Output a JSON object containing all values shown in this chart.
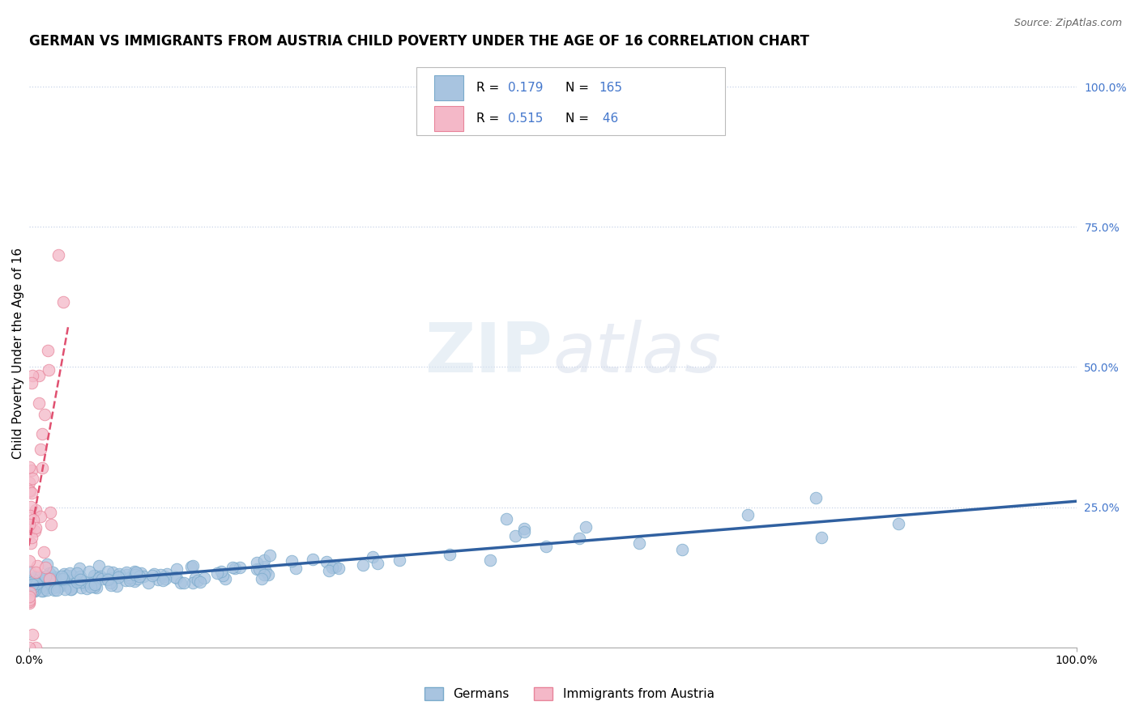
{
  "title": "GERMAN VS IMMIGRANTS FROM AUSTRIA CHILD POVERTY UNDER THE AGE OF 16 CORRELATION CHART",
  "source": "Source: ZipAtlas.com",
  "ylabel": "Child Poverty Under the Age of 16",
  "xlim": [
    0.0,
    1.0
  ],
  "ylim": [
    0.0,
    1.05
  ],
  "x_tick_labels": [
    "0.0%",
    "100.0%"
  ],
  "y_tick_labels": [
    "100.0%",
    "75.0%",
    "50.0%",
    "25.0%"
  ],
  "y_ticks": [
    1.0,
    0.75,
    0.5,
    0.25
  ],
  "german_color": "#a8c4e0",
  "german_edge_color": "#7aaacb",
  "austria_color": "#f4b8c8",
  "austria_edge_color": "#e8849a",
  "regression_german_color": "#3060a0",
  "regression_austria_color": "#e05070",
  "legend_german_label": "Germans",
  "legend_austria_label": "Immigrants from Austria",
  "R_german": 0.179,
  "N_german": 165,
  "R_austria": 0.515,
  "N_austria": 46,
  "grid_color": "#c8d4e8",
  "background_color": "#ffffff",
  "title_fontsize": 12,
  "axis_label_fontsize": 11,
  "tick_fontsize": 10,
  "stat_color": "#4477cc"
}
